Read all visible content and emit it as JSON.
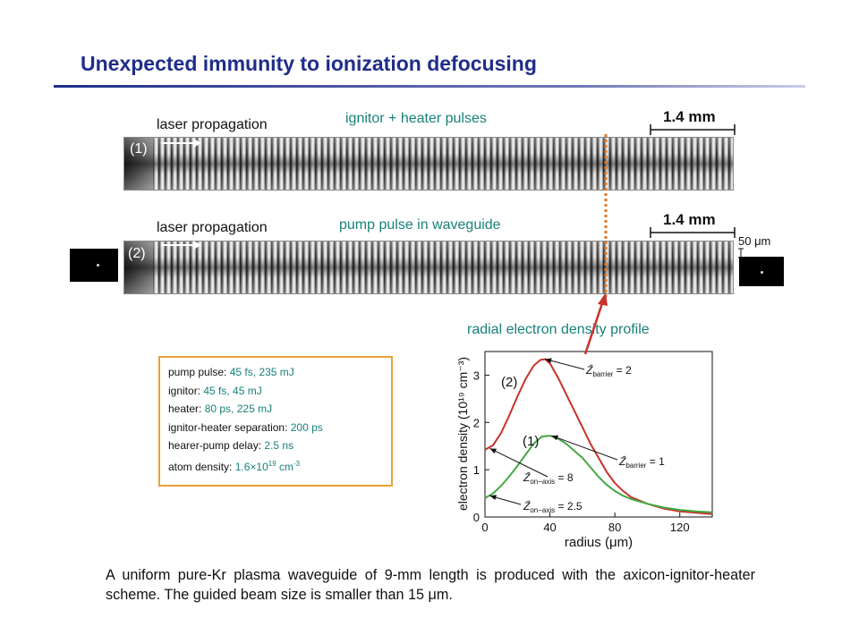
{
  "title": "Unexpected immunity to ionization defocusing",
  "top_panel": {
    "index_label": "(1)",
    "direction_label": "laser propagation",
    "pulse_label": "ignitor + heater pulses",
    "scale_label": "1.4 mm"
  },
  "bottom_panel": {
    "index_label": "(2)",
    "direction_label": "laser propagation",
    "pulse_label": "pump pulse in waveguide",
    "scale_label": "1.4 mm",
    "beam_scale_label": "50 μm"
  },
  "parameters": {
    "pump": {
      "label": "pump pulse: ",
      "value": "45 fs, 235 mJ"
    },
    "ignitor": {
      "label": "ignitor: ",
      "value": "45 fs, 45 mJ"
    },
    "heater": {
      "label": "heater: ",
      "value": "80 ps, 225 mJ"
    },
    "separation": {
      "label": "ignitor-heater separation: ",
      "value": "200 ps"
    },
    "delay": {
      "label": "hearer-pump delay: ",
      "value": "2.5 ns"
    },
    "density": {
      "label": "atom density: ",
      "value_base": "1.6×10",
      "value_exp": "19",
      "unit_base": " cm",
      "unit_exp": "-3"
    }
  },
  "radial_label": "radial electron density profile",
  "chart_data": {
    "type": "line",
    "xlabel": "radius (μm)",
    "ylabel": "electron density (10¹⁹ cm⁻³)",
    "xlim": [
      0,
      140
    ],
    "ylim": [
      0,
      3.5
    ],
    "xticks": [
      0,
      40,
      80,
      120
    ],
    "yticks": [
      0,
      1,
      2,
      3
    ],
    "grid": false,
    "series": [
      {
        "name": "(2)",
        "color": "#c8322a",
        "x": [
          0,
          5,
          10,
          15,
          20,
          25,
          30,
          34,
          37,
          40,
          45,
          50,
          55,
          60,
          65,
          70,
          75,
          80,
          85,
          90,
          100,
          110,
          120,
          130,
          140
        ],
        "y": [
          1.42,
          1.52,
          1.78,
          2.15,
          2.55,
          2.92,
          3.2,
          3.32,
          3.34,
          3.25,
          2.95,
          2.6,
          2.25,
          1.9,
          1.55,
          1.25,
          0.95,
          0.72,
          0.55,
          0.42,
          0.28,
          0.18,
          0.12,
          0.09,
          0.06
        ]
      },
      {
        "name": "(1)",
        "color": "#43a843",
        "x": [
          0,
          5,
          10,
          15,
          20,
          25,
          30,
          35,
          40,
          45,
          50,
          55,
          60,
          65,
          70,
          75,
          80,
          85,
          90,
          100,
          110,
          120,
          130,
          140
        ],
        "y": [
          0.4,
          0.5,
          0.66,
          0.86,
          1.08,
          1.32,
          1.55,
          1.7,
          1.72,
          1.66,
          1.55,
          1.4,
          1.25,
          1.05,
          0.85,
          0.68,
          0.55,
          0.45,
          0.38,
          0.28,
          0.2,
          0.15,
          0.12,
          0.1
        ]
      }
    ],
    "annotations": [
      {
        "text_main": "Z̄",
        "text_sub": "barrier",
        "text_rel": " = 2",
        "points_to": {
          "x": 37,
          "y": 3.34
        }
      },
      {
        "text_main": "Z̄",
        "text_sub": "barrier",
        "text_rel": " = 1",
        "points_to": {
          "x": 41,
          "y": 1.72
        }
      },
      {
        "text_main": "Z̄",
        "text_sub": "on−axis",
        "text_rel": " = 8",
        "points_to": {
          "x": 3,
          "y": 1.45
        }
      },
      {
        "text_main": "Z̄",
        "text_sub": "on−axis",
        "text_rel": " = 2.5",
        "points_to": {
          "x": 3,
          "y": 0.45
        }
      }
    ]
  },
  "caption": "A uniform pure-Kr plasma waveguide of 9-mm length is produced with the axicon-ignitor-heater scheme. The guided beam size is smaller than 15 μm."
}
